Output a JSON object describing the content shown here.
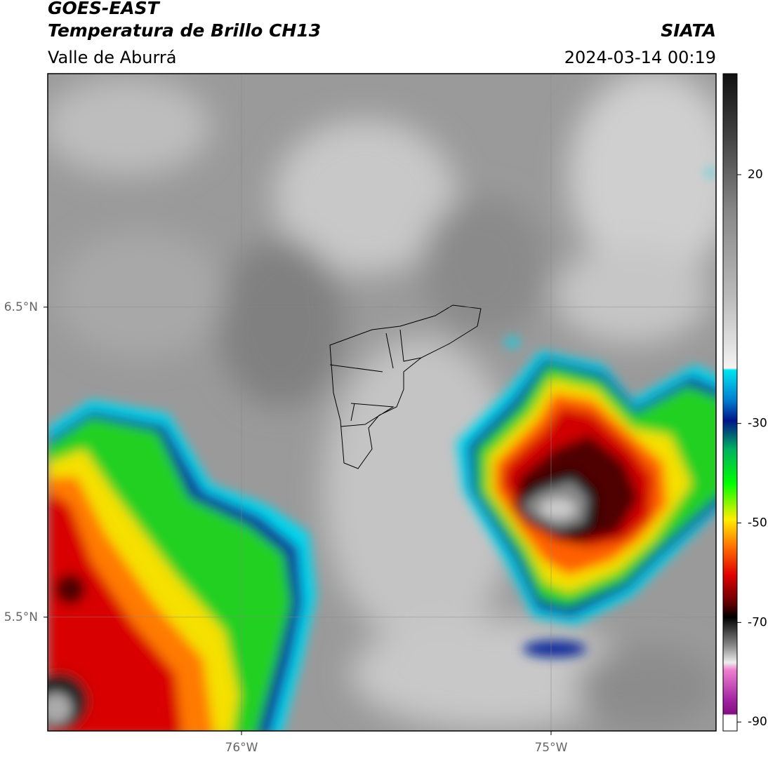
{
  "header": {
    "title": "GOES-EAST",
    "subtitle": "Temperatura de Brillo CH13",
    "region": "Valle de Aburrá",
    "source": "SIATA",
    "timestamp": "2024-03-14 00:19"
  },
  "map": {
    "xlim": [
      -76.626,
      -74.467
    ],
    "ylim": [
      5.133,
      7.253
    ],
    "xticks": [
      {
        "value": -76,
        "label": "76°W"
      },
      {
        "value": -75,
        "label": "75°W"
      }
    ],
    "yticks": [
      {
        "value": 5.5,
        "label": "5.5°N"
      },
      {
        "value": 6.5,
        "label": "6.5°N"
      }
    ],
    "grid": true
  },
  "colorbar": {
    "lim": [
      -91.8,
      40.3
    ],
    "ticks": [
      -90,
      -70,
      -50,
      -30,
      20
    ]
  }
}
